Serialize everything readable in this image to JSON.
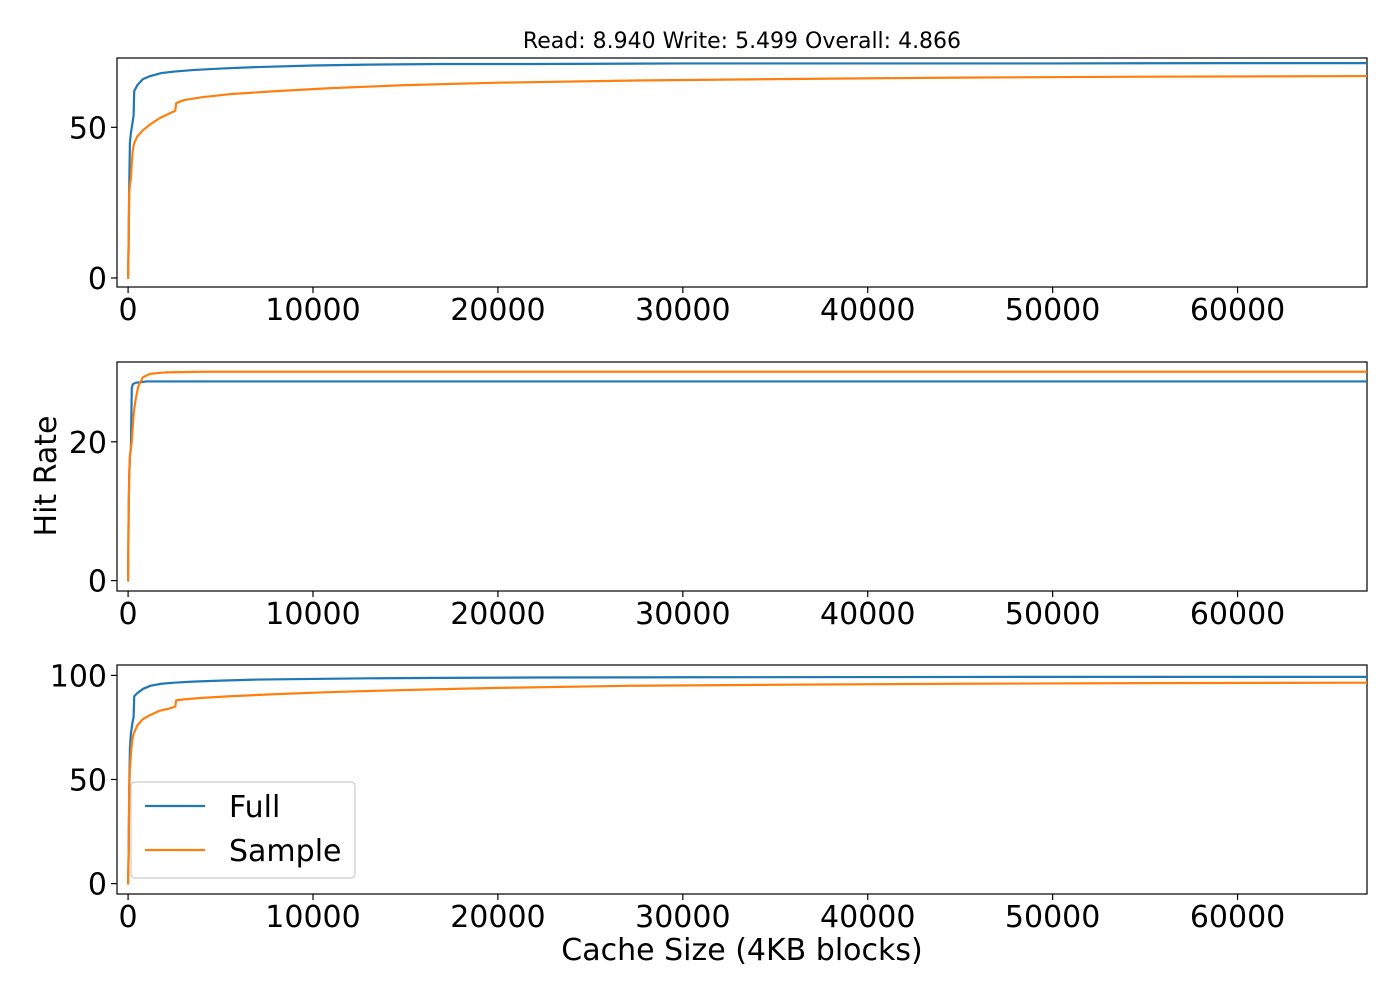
{
  "figure": {
    "title": "Read: 8.940 Write: 5.499 Overall: 4.866",
    "shared_ylabel": "Hit Rate",
    "shared_xlabel": "Cache Size (4KB blocks)"
  },
  "colors": {
    "Full": "#1f77b4",
    "Sample": "#ff7f0e"
  },
  "legend": {
    "placement": "lower-left",
    "entries": [
      "Full",
      "Sample"
    ]
  },
  "chart_data": [
    {
      "type": "line",
      "title": "Read: 8.940 Write: 5.499 Overall: 4.866",
      "xlabel": "",
      "ylabel": "",
      "xlim": [
        -600,
        67000
      ],
      "ylim": [
        -3,
        73
      ],
      "xticks": [
        0,
        10000,
        20000,
        30000,
        40000,
        50000,
        60000
      ],
      "xtick_labels": [
        "0",
        "10000",
        "20000",
        "30000",
        "40000",
        "50000",
        "60000"
      ],
      "yticks": [
        0,
        50
      ],
      "ytick_labels": [
        "0",
        "50"
      ],
      "grid": false,
      "series": [
        {
          "name": "Full",
          "x": [
            0,
            30,
            60,
            100,
            150,
            200,
            250,
            300,
            330,
            500,
            800,
            1200,
            1800,
            2500,
            3500,
            5000,
            7000,
            10000,
            13000,
            17000,
            22000,
            30000,
            40000,
            50000,
            60000,
            67000
          ],
          "y": [
            0,
            12,
            30,
            45,
            48,
            50,
            52,
            54,
            62,
            64,
            66,
            67,
            68,
            68.5,
            69,
            69.5,
            70,
            70.5,
            70.8,
            71,
            71,
            71.2,
            71.2,
            71.2,
            71.3,
            71.3
          ]
        },
        {
          "name": "Sample",
          "x": [
            0,
            30,
            60,
            100,
            150,
            200,
            250,
            300,
            350,
            500,
            800,
            1200,
            1700,
            2200,
            2550,
            2600,
            3000,
            4000,
            5500,
            8000,
            11000,
            15000,
            20000,
            27000,
            35000,
            45000,
            55000,
            67000
          ],
          "y": [
            0,
            12,
            28,
            31,
            33,
            38,
            42,
            44,
            45,
            47,
            49,
            51,
            53,
            54.5,
            55.5,
            58,
            59,
            60,
            61,
            62,
            63,
            64,
            64.8,
            65.5,
            66,
            66.5,
            66.8,
            67
          ]
        }
      ]
    },
    {
      "type": "line",
      "title": "",
      "xlabel": "",
      "ylabel": "Hit Rate",
      "xlim": [
        -600,
        67000
      ],
      "ylim": [
        -1.5,
        31.5
      ],
      "xticks": [
        0,
        10000,
        20000,
        30000,
        40000,
        50000,
        60000
      ],
      "xtick_labels": [
        "0",
        "10000",
        "20000",
        "30000",
        "40000",
        "50000",
        "60000"
      ],
      "yticks": [
        0,
        20
      ],
      "ytick_labels": [
        "0",
        "20"
      ],
      "grid": false,
      "series": [
        {
          "name": "Full",
          "x": [
            0,
            30,
            60,
            100,
            150,
            200,
            260,
            400,
            700,
            1000,
            67000
          ],
          "y": [
            0,
            10,
            15,
            18,
            19,
            27.8,
            28.3,
            28.5,
            28.6,
            28.7,
            28.7
          ]
        },
        {
          "name": "Sample",
          "x": [
            0,
            30,
            60,
            100,
            150,
            200,
            300,
            400,
            550,
            800,
            1200,
            2000,
            4000,
            67000
          ],
          "y": [
            0,
            10,
            15,
            18,
            19,
            20,
            24,
            26,
            28,
            29.3,
            29.8,
            30.0,
            30.1,
            30.1
          ]
        }
      ]
    },
    {
      "type": "line",
      "title": "",
      "xlabel": "Cache Size (4KB blocks)",
      "ylabel": "",
      "xlim": [
        -600,
        67000
      ],
      "ylim": [
        -5,
        105
      ],
      "xticks": [
        0,
        10000,
        20000,
        30000,
        40000,
        50000,
        60000
      ],
      "xtick_labels": [
        "0",
        "10000",
        "20000",
        "30000",
        "40000",
        "50000",
        "60000"
      ],
      "yticks": [
        0,
        50,
        100
      ],
      "ytick_labels": [
        "0",
        "50",
        "100"
      ],
      "grid": false,
      "series": [
        {
          "name": "Full",
          "x": [
            0,
            30,
            60,
            100,
            150,
            200,
            250,
            300,
            330,
            500,
            800,
            1200,
            1800,
            2500,
            3500,
            5000,
            7000,
            10000,
            13000,
            17000,
            22000,
            30000,
            40000,
            50000,
            60000,
            67000
          ],
          "y": [
            0,
            15,
            45,
            65,
            72,
            75,
            78,
            80,
            90,
            91.5,
            93.5,
            95,
            96,
            96.5,
            97,
            97.5,
            98,
            98.3,
            98.6,
            98.8,
            99,
            99.1,
            99.2,
            99.3,
            99.3,
            99.3
          ]
        },
        {
          "name": "Sample",
          "x": [
            0,
            30,
            60,
            100,
            150,
            200,
            250,
            300,
            350,
            500,
            800,
            1200,
            1700,
            2200,
            2550,
            2600,
            3000,
            4000,
            5500,
            8000,
            11000,
            15000,
            20000,
            27000,
            35000,
            45000,
            55000,
            67000
          ],
          "y": [
            0,
            15,
            45,
            55,
            62,
            67,
            70,
            72,
            73,
            76,
            79,
            81,
            83,
            84,
            85,
            88,
            88.5,
            89.2,
            90,
            91,
            92,
            93,
            94,
            95,
            95.5,
            96,
            96.3,
            96.5
          ]
        }
      ]
    }
  ]
}
